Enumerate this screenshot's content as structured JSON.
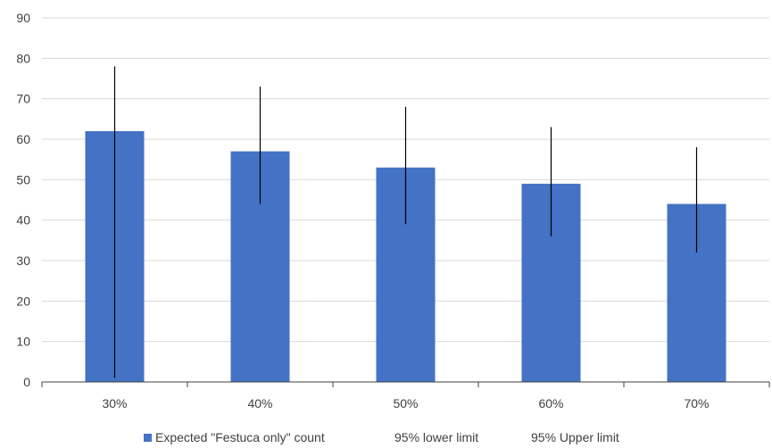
{
  "chart_data": {
    "type": "bar",
    "categories": [
      "30%",
      "40%",
      "50%",
      "60%",
      "70%"
    ],
    "series": [
      {
        "name": "Expected \"Festuca only\" count",
        "values": [
          62,
          57,
          53,
          49,
          44
        ]
      },
      {
        "name": "95% lower limit",
        "values": [
          1,
          44,
          39,
          36,
          32
        ]
      },
      {
        "name": "95% Upper limit",
        "values": [
          78,
          73,
          68,
          63,
          58
        ]
      }
    ],
    "title": "",
    "xlabel": "",
    "ylabel": "",
    "ylim": [
      0,
      90
    ],
    "yticks": [
      "0",
      "10",
      "20",
      "30",
      "40",
      "50",
      "60",
      "70",
      "80",
      "90"
    ],
    "grid": true,
    "legend": "bottom",
    "colors": {
      "bar": "#4472C4",
      "error_line": "#000000",
      "grid": "#D9D9D9",
      "axis": "#404040"
    }
  }
}
